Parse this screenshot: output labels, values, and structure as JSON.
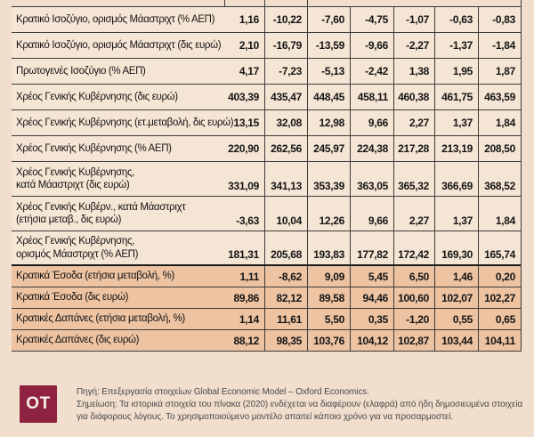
{
  "colors": {
    "page_bg": "#f1decd",
    "row_bg": "#f5e5d4",
    "highlight_row_bg": "#edc3a2",
    "grid_line": "#3c3c3c",
    "thick_divider": "#1c1c1c",
    "text": "#141414",
    "logo_bg": "#8e2240",
    "logo_text_color": "#f8f2ea"
  },
  "table": {
    "rows": [
      {
        "label": "Κρατικό Ισοζύγιο, ορισμός Μάαστριχτ (% ΑΕΠ)",
        "highlight": false,
        "values": [
          "1,16",
          "-10,22",
          "-7,60",
          "-4,75",
          "-1,07",
          "-0,63",
          "-0,83"
        ]
      },
      {
        "label": "Κρατικό Ισοζύγιο, ορισμός Μάαστριχτ (δις ευρώ)",
        "highlight": false,
        "values": [
          "2,10",
          "-16,79",
          "-13,59",
          "-9,66",
          "-2,27",
          "-1,37",
          "-1,84"
        ]
      },
      {
        "label": "Πρωτογενές Ισοζύγιο (% ΑΕΠ)",
        "highlight": false,
        "values": [
          "4,17",
          "-7,23",
          "-5,13",
          "-2,42",
          "1,38",
          "1,95",
          "1,87"
        ]
      },
      {
        "label": "Χρέος Γενικής Κυβέρνησης (δις ευρώ)",
        "highlight": false,
        "values": [
          "403,39",
          "435,47",
          "448,45",
          "458,11",
          "460,38",
          "461,75",
          "463,59"
        ]
      },
      {
        "label": "Χρέος Γενικής Κυβέρνησης (ετ.μεταβολή, δις ευρώ)",
        "highlight": false,
        "values": [
          "13,15",
          "32,08",
          "12,98",
          "9,66",
          "2,27",
          "1,37",
          "1,84"
        ]
      },
      {
        "label": "Χρέος Γενικής Κυβέρνησης (% ΑΕΠ)",
        "highlight": false,
        "values": [
          "220,90",
          "262,56",
          "245,97",
          "224,38",
          "217,28",
          "213,19",
          "208,50"
        ]
      },
      {
        "label": "Χρέος Γενικής Κυβέρνησης,\nκατά Μάαστριχτ (δις ευρώ)",
        "highlight": false,
        "values": [
          "331,09",
          "341,13",
          "353,39",
          "363,05",
          "365,32",
          "366,69",
          "368,52"
        ]
      },
      {
        "label": "Χρέος Γενικής Κυβέρν., κατά Μάαστριχτ\n(ετήσια μεταβ., δις ευρώ)",
        "highlight": false,
        "values": [
          "-3,63",
          "10,04",
          "12,26",
          "9,66",
          "2,27",
          "1,37",
          "1,84"
        ]
      },
      {
        "label": "Χρέος Γενικής Κυβέρνησης,\nορισμός Μάαστριχτ (% ΑΕΠ)",
        "highlight": false,
        "values": [
          "181,31",
          "205,68",
          "193,83",
          "177,82",
          "172,42",
          "169,30",
          "165,74"
        ]
      },
      {
        "label": "Κρατικά Έσοδα (ετήσια μεταβολή, %)",
        "highlight": true,
        "values": [
          "1,11",
          "-8,62",
          "9,09",
          "5,45",
          "6,50",
          "1,46",
          "0,20"
        ]
      },
      {
        "label": "Κρατικά Έσοδα (δις ευρώ)",
        "highlight": true,
        "values": [
          "89,86",
          "82,12",
          "89,58",
          "94,46",
          "100,60",
          "102,07",
          "102,27"
        ]
      },
      {
        "label": "Κρατικές Δαπάνες (ετήσια μεταβολή, %)",
        "highlight": true,
        "values": [
          "1,14",
          "11,61",
          "5,50",
          "0,35",
          "-1,20",
          "0,55",
          "0,65"
        ]
      },
      {
        "label": "Κρατικές Δαπάνες (δις ευρώ)",
        "highlight": true,
        "values": [
          "88,12",
          "98,35",
          "103,76",
          "104,12",
          "102,87",
          "103,44",
          "104,11"
        ]
      }
    ]
  },
  "footer": {
    "logo_text": "OT",
    "source": "Πηγή: Επεξεργασία στοιχείων Global Economic Model – Oxford Economics.",
    "note": "Σημείωση: Τα ιστορικά στοιχεία του πίνακα (2020) ενδέχεται να διαφέρουν (ελαφρά) από ήδη δημοσιευμένα στοιχεία για διάφορους λόγους. Το χρησιμοποιούμενο μοντέλο απαιτεί κάποιο χρόνο για να προσαρμοστεί."
  },
  "chart_data": {
    "type": "table",
    "column_headers_visible": false,
    "num_value_columns": 7,
    "rows": [
      {
        "label": "Κρατικό Ισοζύγιο, ορισμός Μάαστριχτ (% ΑΕΠ)",
        "values": [
          1.16,
          -10.22,
          -7.6,
          -4.75,
          -1.07,
          -0.63,
          -0.83
        ]
      },
      {
        "label": "Κρατικό Ισοζύγιο, ορισμός Μάαστριχτ (δις ευρώ)",
        "values": [
          2.1,
          -16.79,
          -13.59,
          -9.66,
          -2.27,
          -1.37,
          -1.84
        ]
      },
      {
        "label": "Πρωτογενές Ισοζύγιο (% ΑΕΠ)",
        "values": [
          4.17,
          -7.23,
          -5.13,
          -2.42,
          1.38,
          1.95,
          1.87
        ]
      },
      {
        "label": "Χρέος Γενικής Κυβέρνησης (δις ευρώ)",
        "values": [
          403.39,
          435.47,
          448.45,
          458.11,
          460.38,
          461.75,
          463.59
        ]
      },
      {
        "label": "Χρέος Γενικής Κυβέρνησης (ετ.μεταβολή, δις ευρώ)",
        "values": [
          13.15,
          32.08,
          12.98,
          9.66,
          2.27,
          1.37,
          1.84
        ]
      },
      {
        "label": "Χρέος Γενικής Κυβέρνησης (% ΑΕΠ)",
        "values": [
          220.9,
          262.56,
          245.97,
          224.38,
          217.28,
          213.19,
          208.5
        ]
      },
      {
        "label": "Χρέος Γενικής Κυβέρνησης, κατά Μάαστριχτ (δις ευρώ)",
        "values": [
          331.09,
          341.13,
          353.39,
          363.05,
          365.32,
          366.69,
          368.52
        ]
      },
      {
        "label": "Χρέος Γενικής Κυβέρν., κατά Μάαστριχτ (ετήσια μεταβ., δις ευρώ)",
        "values": [
          -3.63,
          10.04,
          12.26,
          9.66,
          2.27,
          1.37,
          1.84
        ]
      },
      {
        "label": "Χρέος Γενικής Κυβέρνησης, ορισμός Μάαστριχτ (% ΑΕΠ)",
        "values": [
          181.31,
          205.68,
          193.83,
          177.82,
          172.42,
          169.3,
          165.74
        ]
      },
      {
        "label": "Κρατικά Έσοδα (ετήσια μεταβολή, %)",
        "values": [
          1.11,
          -8.62,
          9.09,
          5.45,
          6.5,
          1.46,
          0.2
        ]
      },
      {
        "label": "Κρατικά Έσοδα (δις ευρώ)",
        "values": [
          89.86,
          82.12,
          89.58,
          94.46,
          100.6,
          102.07,
          102.27
        ]
      },
      {
        "label": "Κρατικές Δαπάνες (ετήσια μεταβολή, %)",
        "values": [
          1.14,
          11.61,
          5.5,
          0.35,
          -1.2,
          0.55,
          0.65
        ]
      },
      {
        "label": "Κρατικές Δαπάνες (δις ευρώ)",
        "values": [
          88.12,
          98.35,
          103.76,
          104.12,
          102.87,
          103.44,
          104.11
        ]
      }
    ],
    "source": "Πηγή: Επεξεργασία στοιχείων Global Economic Model – Oxford Economics.",
    "note": "Σημείωση: Τα ιστορικά στοιχεία του πίνακα (2020) ενδέχεται να διαφέρουν (ελαφρά) από ήδη δημοσιευμένα στοιχεία για διάφορους λόγους. Το χρησιμοποιούμενο μοντέλο απαιτεί κάποιο χρόνο για να προσαρμοστεί."
  }
}
